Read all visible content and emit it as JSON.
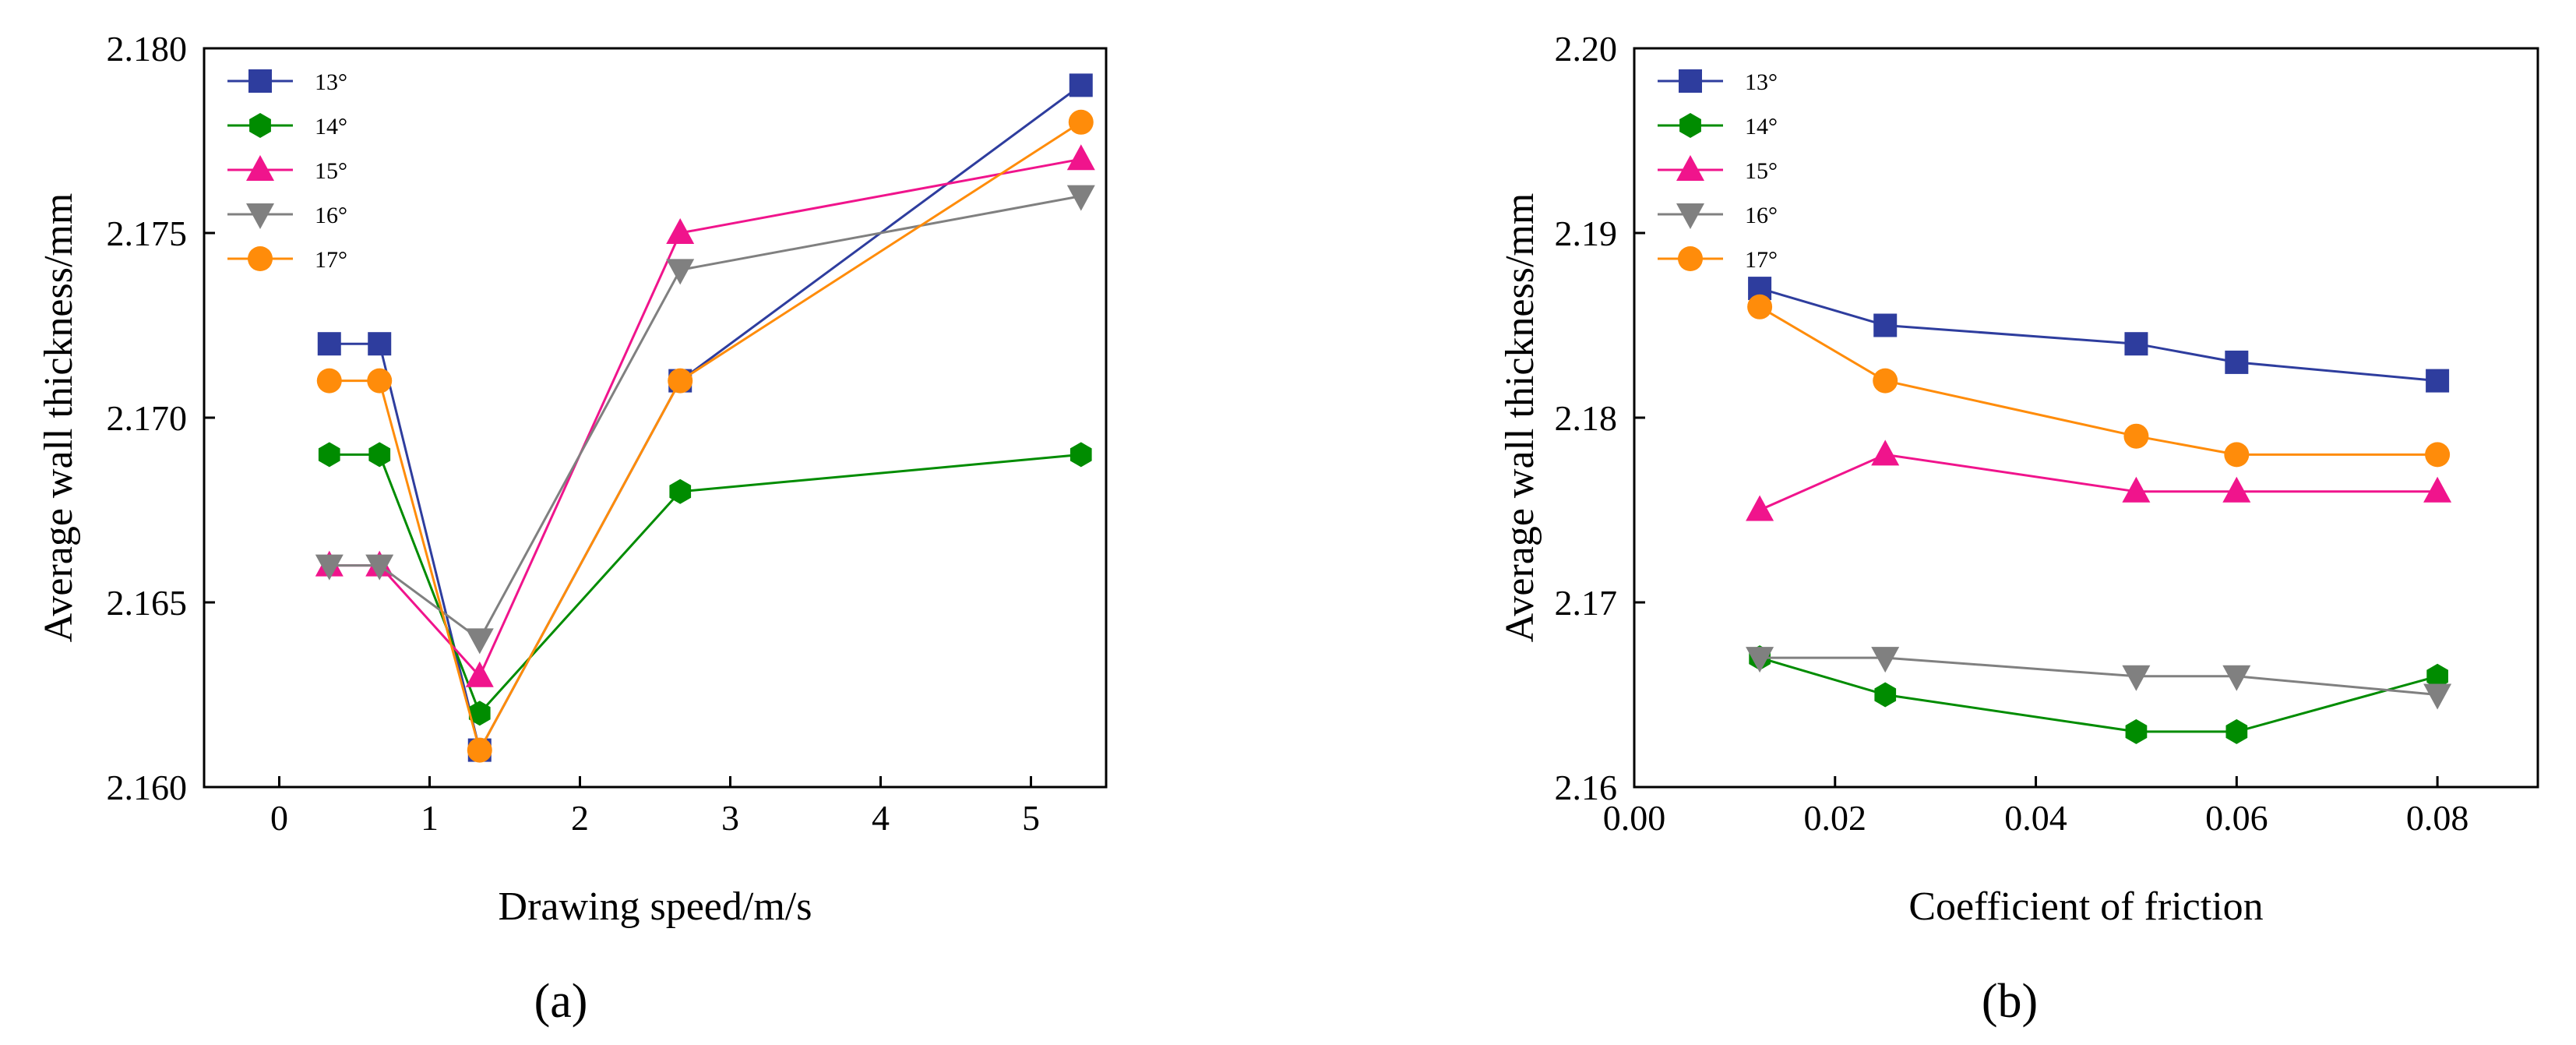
{
  "chart_data": [
    {
      "type": "line",
      "panel_label": "(a)",
      "xlabel": "Drawing speed/m/s",
      "ylabel": "Average wall thickness/mm",
      "xlim": [
        -0.5,
        5.5
      ],
      "ylim": [
        2.16,
        2.18
      ],
      "xticks": [
        0,
        1,
        2,
        3,
        4,
        5
      ],
      "xtick_labels": [
        "0",
        "1",
        "2",
        "3",
        "4",
        "5"
      ],
      "yticks": [
        2.16,
        2.165,
        2.17,
        2.175,
        2.18
      ],
      "ytick_labels": [
        "2.160",
        "2.165",
        "2.170",
        "2.175",
        "2.180"
      ],
      "grid": false,
      "legend_position": "top-left",
      "x": [
        0.333,
        0.667,
        1.333,
        2.667,
        5.333
      ],
      "series": [
        {
          "name": "13°",
          "color": "#2E3D9E",
          "marker": "square",
          "values": [
            2.172,
            2.172,
            2.161,
            2.171,
            2.179
          ]
        },
        {
          "name": "14°",
          "color": "#008C00",
          "marker": "hexagon",
          "values": [
            2.169,
            2.169,
            2.162,
            2.168,
            2.169
          ]
        },
        {
          "name": "15°",
          "color": "#F0148C",
          "marker": "triangle-up",
          "values": [
            2.166,
            2.166,
            2.163,
            2.175,
            2.177
          ]
        },
        {
          "name": "16°",
          "color": "#808080",
          "marker": "triangle-down",
          "values": [
            2.166,
            2.166,
            2.164,
            2.174,
            2.176
          ]
        },
        {
          "name": "17°",
          "color": "#FF8C0A",
          "marker": "circle",
          "values": [
            2.171,
            2.171,
            2.161,
            2.171,
            2.178
          ]
        }
      ]
    },
    {
      "type": "line",
      "panel_label": "(b)",
      "xlabel": "Coefficient of friction",
      "ylabel": "Average wall thickness/mm",
      "xlim": [
        0.0,
        0.09
      ],
      "ylim": [
        2.16,
        2.2
      ],
      "xticks": [
        0.0,
        0.02,
        0.04,
        0.06,
        0.08
      ],
      "xtick_labels": [
        "0.00",
        "0.02",
        "0.04",
        "0.06",
        "0.08"
      ],
      "yticks": [
        2.16,
        2.17,
        2.18,
        2.19,
        2.2
      ],
      "ytick_labels": [
        "2.16",
        "2.17",
        "2.18",
        "2.19",
        "2.20"
      ],
      "grid": false,
      "legend_position": "top-left",
      "x": [
        0.0125,
        0.025,
        0.05,
        0.06,
        0.08
      ],
      "series": [
        {
          "name": "13°",
          "color": "#2E3D9E",
          "marker": "square",
          "values": [
            2.187,
            2.185,
            2.184,
            2.183,
            2.182
          ]
        },
        {
          "name": "14°",
          "color": "#008C00",
          "marker": "hexagon",
          "values": [
            2.167,
            2.165,
            2.163,
            2.163,
            2.166
          ]
        },
        {
          "name": "15°",
          "color": "#F0148C",
          "marker": "triangle-up",
          "values": [
            2.175,
            2.178,
            2.176,
            2.176,
            2.176
          ]
        },
        {
          "name": "16°",
          "color": "#808080",
          "marker": "triangle-down",
          "values": [
            2.167,
            2.167,
            2.166,
            2.166,
            2.165
          ]
        },
        {
          "name": "17°",
          "color": "#FF8C0A",
          "marker": "circle",
          "values": [
            2.186,
            2.182,
            2.179,
            2.178,
            2.178
          ]
        }
      ]
    }
  ]
}
